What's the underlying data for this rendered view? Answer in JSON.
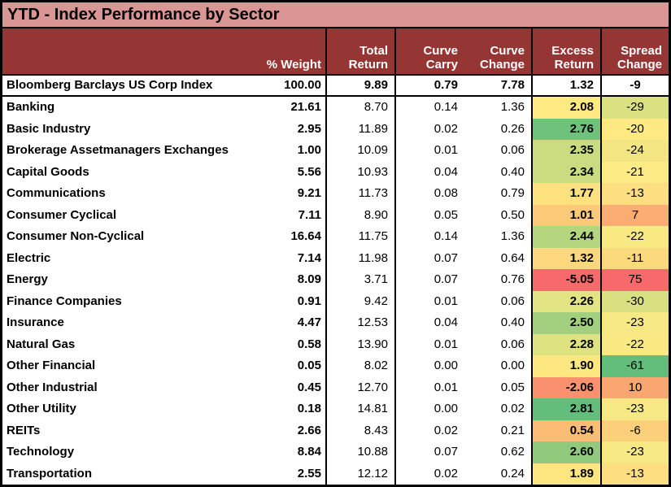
{
  "title": "YTD - Index Performance by Sector",
  "colors": {
    "title_bg": "#D99694",
    "header_bg": "#963634",
    "header_text": "#FFFFFF",
    "grid_border": "#000000",
    "heat_scale_low_red": "#F8696B",
    "heat_scale_mid_yellow": "#FFEB84",
    "heat_scale_high_green": "#63BE7B"
  },
  "chart_data": {
    "type": "table",
    "title": "YTD - Index Performance by Sector",
    "columns": [
      "% Weight",
      "Total Return",
      "Curve Carry",
      "Curve Change",
      "Excess Return",
      "Spread Change"
    ],
    "heatmap_columns": [
      "Excess Return",
      "Spread Change"
    ],
    "index_row": {
      "name": "Bloomberg Barclays US Corp Index",
      "weight": "100.00",
      "total_return": "9.89",
      "curve_carry": "0.79",
      "curve_change": "7.78",
      "excess_return": "1.32",
      "spread_change": "-9"
    },
    "rows": [
      {
        "name": "Banking",
        "weight": "21.61",
        "total_return": "8.70",
        "curve_carry": "0.14",
        "curve_change": "1.36",
        "excess_return": "2.08",
        "spread_change": "-29",
        "excess_bg": "#FEE983",
        "spread_bg": "#DBE081"
      },
      {
        "name": "Basic Industry",
        "weight": "2.95",
        "total_return": "11.89",
        "curve_carry": "0.02",
        "curve_change": "0.26",
        "excess_return": "2.76",
        "spread_change": "-20",
        "excess_bg": "#6EC27C",
        "spread_bg": "#FEE983"
      },
      {
        "name": "Brokerage Assetmanagers Exchanges",
        "weight": "1.00",
        "total_return": "10.09",
        "curve_carry": "0.01",
        "curve_change": "0.06",
        "excess_return": "2.35",
        "spread_change": "-24",
        "excess_bg": "#C9DC80",
        "spread_bg": "#F3E682"
      },
      {
        "name": "Capital Goods",
        "weight": "5.56",
        "total_return": "10.93",
        "curve_carry": "0.04",
        "curve_change": "0.40",
        "excess_return": "2.34",
        "spread_change": "-21",
        "excess_bg": "#C9DC80",
        "spread_bg": "#FCEA84"
      },
      {
        "name": "Communications",
        "weight": "9.21",
        "total_return": "11.73",
        "curve_carry": "0.08",
        "curve_change": "0.79",
        "excess_return": "1.77",
        "spread_change": "-13",
        "excess_bg": "#FDE17E",
        "spread_bg": "#FDDE80"
      },
      {
        "name": "Consumer Cyclical",
        "weight": "7.11",
        "total_return": "8.90",
        "curve_carry": "0.05",
        "curve_change": "0.50",
        "excess_return": "1.01",
        "spread_change": "7",
        "excess_bg": "#FCC979",
        "spread_bg": "#FAAD73"
      },
      {
        "name": "Consumer Non-Cyclical",
        "weight": "16.64",
        "total_return": "11.75",
        "curve_carry": "0.14",
        "curve_change": "1.36",
        "excess_return": "2.44",
        "spread_change": "-22",
        "excess_bg": "#B5D57F",
        "spread_bg": "#F9E983"
      },
      {
        "name": "Electric",
        "weight": "7.14",
        "total_return": "11.98",
        "curve_carry": "0.07",
        "curve_change": "0.64",
        "excess_return": "1.32",
        "spread_change": "-11",
        "excess_bg": "#FDD77D",
        "spread_bg": "#FDD97D"
      },
      {
        "name": "Energy",
        "weight": "8.09",
        "total_return": "3.71",
        "curve_carry": "0.07",
        "curve_change": "0.76",
        "excess_return": "-5.05",
        "spread_change": "75",
        "excess_bg": "#F8696B",
        "spread_bg": "#F8696B"
      },
      {
        "name": "Finance Companies",
        "weight": "0.91",
        "total_return": "9.42",
        "curve_carry": "0.01",
        "curve_change": "0.06",
        "excess_return": "2.26",
        "spread_change": "-30",
        "excess_bg": "#E2E382",
        "spread_bg": "#D9E081"
      },
      {
        "name": "Insurance",
        "weight": "4.47",
        "total_return": "12.53",
        "curve_carry": "0.04",
        "curve_change": "0.40",
        "excess_return": "2.50",
        "spread_change": "-23",
        "excess_bg": "#A2D07E",
        "spread_bg": "#F6E883"
      },
      {
        "name": "Natural Gas",
        "weight": "0.58",
        "total_return": "13.90",
        "curve_carry": "0.01",
        "curve_change": "0.06",
        "excess_return": "2.28",
        "spread_change": "-22",
        "excess_bg": "#DFE281",
        "spread_bg": "#F9E983"
      },
      {
        "name": "Other Financial",
        "weight": "0.05",
        "total_return": "8.02",
        "curve_carry": "0.00",
        "curve_change": "0.00",
        "excess_return": "1.90",
        "spread_change": "-61",
        "excess_bg": "#FDE780",
        "spread_bg": "#63BE7B"
      },
      {
        "name": "Other Industrial",
        "weight": "0.45",
        "total_return": "12.70",
        "curve_carry": "0.01",
        "curve_change": "0.05",
        "excess_return": "-2.06",
        "spread_change": "10",
        "excess_bg": "#F9916F",
        "spread_bg": "#FAA671"
      },
      {
        "name": "Other Utility",
        "weight": "0.18",
        "total_return": "14.81",
        "curve_carry": "0.00",
        "curve_change": "0.02",
        "excess_return": "2.81",
        "spread_change": "-23",
        "excess_bg": "#63BE7B",
        "spread_bg": "#F6E883"
      },
      {
        "name": "REITs",
        "weight": "2.66",
        "total_return": "8.43",
        "curve_carry": "0.02",
        "curve_change": "0.21",
        "excess_return": "0.54",
        "spread_change": "-6",
        "excess_bg": "#FBBC75",
        "spread_bg": "#FCCF7A"
      },
      {
        "name": "Technology",
        "weight": "8.84",
        "total_return": "10.88",
        "curve_carry": "0.07",
        "curve_change": "0.62",
        "excess_return": "2.60",
        "spread_change": "-23",
        "excess_bg": "#8FCA7D",
        "spread_bg": "#F6E883"
      },
      {
        "name": "Transportation",
        "weight": "2.55",
        "total_return": "12.12",
        "curve_carry": "0.02",
        "curve_change": "0.24",
        "excess_return": "1.89",
        "spread_change": "-13",
        "excess_bg": "#FDE680",
        "spread_bg": "#FDDE80"
      }
    ]
  }
}
